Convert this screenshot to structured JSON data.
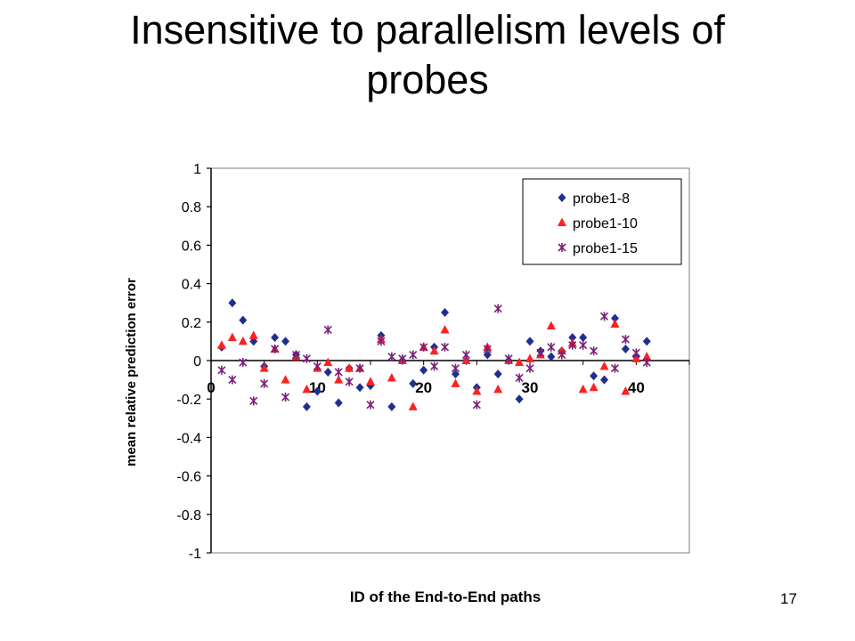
{
  "slide": {
    "title_line1": "Insensitive to parallelism levels of",
    "title_line2": "probes",
    "page_number": "17"
  },
  "colors": {
    "probe1-8": "#1f2f8f",
    "probe1-10": "#ff2020",
    "probe1-15": "#7a1f7a",
    "axis": "#000000"
  },
  "chart_data": {
    "type": "scatter",
    "xlabel": "ID of the End-to-End paths",
    "ylabel": "mean relative prediction error",
    "xlim": [
      0,
      45
    ],
    "ylim": [
      -1,
      1
    ],
    "xticks": [
      "0",
      "10",
      "20",
      "30",
      "40"
    ],
    "xtick_values": [
      0,
      10,
      20,
      30,
      40
    ],
    "yticks": [
      "1",
      "0.8",
      "0.6",
      "0.4",
      "0.2",
      "0",
      "-0.2",
      "-0.4",
      "-0.6",
      "-0.8",
      "-1"
    ],
    "ytick_values": [
      1,
      0.8,
      0.6,
      0.4,
      0.2,
      0,
      -0.2,
      -0.4,
      -0.6,
      -0.8,
      -1
    ],
    "legend_position": "top-right",
    "series": [
      {
        "name": "probe1-8",
        "marker": "diamond",
        "points": [
          [
            1,
            0.07
          ],
          [
            2,
            0.3
          ],
          [
            3,
            0.21
          ],
          [
            4,
            0.1
          ],
          [
            5,
            -0.03
          ],
          [
            6,
            0.12
          ],
          [
            7,
            0.1
          ],
          [
            8,
            0.03
          ],
          [
            9,
            -0.24
          ],
          [
            10,
            -0.16
          ],
          [
            11,
            -0.06
          ],
          [
            12,
            -0.22
          ],
          [
            13,
            -0.04
          ],
          [
            14,
            -0.14
          ],
          [
            15,
            -0.13
          ],
          [
            16,
            0.13
          ],
          [
            17,
            -0.24
          ],
          [
            18,
            0.0
          ],
          [
            19,
            -0.12
          ],
          [
            20,
            -0.05
          ],
          [
            21,
            0.07
          ],
          [
            22,
            0.25
          ],
          [
            23,
            -0.07
          ],
          [
            24,
            0.0
          ],
          [
            25,
            -0.14
          ],
          [
            26,
            0.03
          ],
          [
            27,
            -0.07
          ],
          [
            28,
            0.0
          ],
          [
            29,
            -0.2
          ],
          [
            30,
            0.1
          ],
          [
            31,
            0.05
          ],
          [
            32,
            0.02
          ],
          [
            33,
            0.05
          ],
          [
            34,
            0.12
          ],
          [
            35,
            0.12
          ],
          [
            36,
            -0.08
          ],
          [
            37,
            -0.1
          ],
          [
            38,
            0.22
          ],
          [
            39,
            0.06
          ],
          [
            40,
            0.02
          ],
          [
            41,
            0.1
          ]
        ]
      },
      {
        "name": "probe1-10",
        "marker": "triangle",
        "points": [
          [
            1,
            0.08
          ],
          [
            2,
            0.12
          ],
          [
            3,
            0.1
          ],
          [
            4,
            0.13
          ],
          [
            5,
            -0.04
          ],
          [
            6,
            0.06
          ],
          [
            7,
            -0.1
          ],
          [
            8,
            0.02
          ],
          [
            9,
            -0.15
          ],
          [
            10,
            -0.04
          ],
          [
            11,
            -0.01
          ],
          [
            12,
            -0.1
          ],
          [
            13,
            -0.04
          ],
          [
            14,
            -0.04
          ],
          [
            15,
            -0.11
          ],
          [
            16,
            0.11
          ],
          [
            17,
            -0.09
          ],
          [
            18,
            0.0
          ],
          [
            19,
            -0.24
          ],
          [
            20,
            0.07
          ],
          [
            21,
            0.05
          ],
          [
            22,
            0.16
          ],
          [
            23,
            -0.12
          ],
          [
            24,
            0.0
          ],
          [
            25,
            -0.16
          ],
          [
            26,
            0.07
          ],
          [
            27,
            -0.15
          ],
          [
            28,
            0.0
          ],
          [
            29,
            -0.01
          ],
          [
            30,
            0.01
          ],
          [
            31,
            0.03
          ],
          [
            32,
            0.18
          ],
          [
            33,
            0.05
          ],
          [
            34,
            0.09
          ],
          [
            35,
            -0.15
          ],
          [
            36,
            -0.14
          ],
          [
            37,
            -0.03
          ],
          [
            38,
            0.19
          ],
          [
            39,
            -0.16
          ],
          [
            40,
            0.01
          ],
          [
            41,
            0.02
          ]
        ]
      },
      {
        "name": "probe1-15",
        "marker": "x",
        "points": [
          [
            1,
            -0.05
          ],
          [
            2,
            -0.1
          ],
          [
            3,
            -0.01
          ],
          [
            4,
            -0.21
          ],
          [
            5,
            -0.12
          ],
          [
            6,
            0.06
          ],
          [
            7,
            -0.19
          ],
          [
            8,
            0.03
          ],
          [
            9,
            0.01
          ],
          [
            10,
            -0.03
          ],
          [
            11,
            0.16
          ],
          [
            12,
            -0.06
          ],
          [
            13,
            -0.11
          ],
          [
            14,
            -0.04
          ],
          [
            15,
            -0.23
          ],
          [
            16,
            0.1
          ],
          [
            17,
            0.02
          ],
          [
            18,
            0.01
          ],
          [
            19,
            0.03
          ],
          [
            20,
            0.07
          ],
          [
            21,
            -0.03
          ],
          [
            22,
            0.07
          ],
          [
            23,
            -0.04
          ],
          [
            24,
            0.03
          ],
          [
            25,
            -0.23
          ],
          [
            26,
            0.06
          ],
          [
            27,
            0.27
          ],
          [
            28,
            0.01
          ],
          [
            29,
            -0.09
          ],
          [
            30,
            -0.04
          ],
          [
            31,
            0.04
          ],
          [
            32,
            0.07
          ],
          [
            33,
            0.03
          ],
          [
            34,
            0.08
          ],
          [
            35,
            0.08
          ],
          [
            36,
            0.05
          ],
          [
            37,
            0.23
          ],
          [
            38,
            -0.04
          ],
          [
            39,
            0.11
          ],
          [
            40,
            0.04
          ],
          [
            41,
            -0.01
          ]
        ]
      }
    ]
  }
}
